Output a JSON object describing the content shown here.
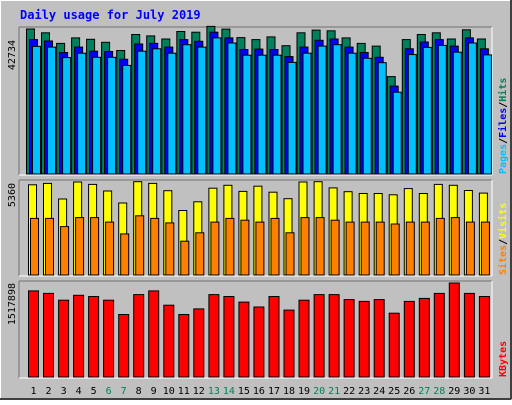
{
  "chart_data": {
    "title": "Daily usage for July 2019",
    "days": [
      "1",
      "2",
      "3",
      "4",
      "5",
      "6",
      "7",
      "8",
      "9",
      "10",
      "11",
      "12",
      "13",
      "14",
      "15",
      "16",
      "17",
      "18",
      "19",
      "20",
      "21",
      "22",
      "23",
      "24",
      "25",
      "26",
      "27",
      "28",
      "29",
      "30",
      "31"
    ],
    "weekend_days": [
      "6",
      "7",
      "13",
      "14",
      "20",
      "21",
      "27",
      "28"
    ],
    "colors": {
      "background": "#c0c0c0",
      "title": "#0000ff",
      "hits": "#00805c",
      "files": "#0000ff",
      "pages": "#00c0ff",
      "visits": "#ffff00",
      "sites": "#ff8000",
      "kbytes": "#ff0000",
      "weekend_label": "#00805c",
      "weekday_label": "#000000"
    },
    "panels": [
      {
        "type": "bar",
        "axis_max_label": "42734",
        "ylim": [
          0,
          42734
        ],
        "legend": [
          {
            "label": "Pages",
            "color": "#00c0ff"
          },
          {
            "label": "/",
            "color": "#000000"
          },
          {
            "label": "Files",
            "color": "#0000ff"
          },
          {
            "label": "/",
            "color": "#000000"
          },
          {
            "label": "Hits",
            "color": "#00805c"
          }
        ],
        "series": [
          {
            "name": "Hits",
            "values": [
              42734,
              41600,
              38500,
              40100,
              39700,
              38800,
              36400,
              41100,
              40700,
              39800,
              42000,
              41800,
              43500,
              42700,
              40200,
              39600,
              40400,
              37800,
              41600,
              42400,
              42200,
              40100,
              38500,
              37700,
              28700,
              39600,
              41100,
              41600,
              39800,
              42500,
              39800
            ]
          },
          {
            "name": "Files",
            "values": [
              39600,
              39200,
              35800,
              37400,
              36200,
              36100,
              33800,
              38300,
              38500,
              37400,
              39600,
              39100,
              41800,
              40100,
              36700,
              36800,
              36700,
              34600,
              37400,
              39400,
              39800,
              37400,
              35800,
              34400,
              25900,
              36900,
              38900,
              39600,
              37700,
              40100,
              36900
            ]
          },
          {
            "name": "Pages",
            "values": [
              37600,
              37400,
              34300,
              35600,
              34400,
              34400,
              32000,
              36200,
              36900,
              35600,
              38100,
              37400,
              40100,
              38600,
              35000,
              35000,
              35000,
              32900,
              35600,
              37700,
              38100,
              35600,
              34100,
              32800,
              24100,
              35200,
              37300,
              37900,
              35900,
              38600,
              35100
            ]
          }
        ]
      },
      {
        "type": "bar",
        "axis_max_label": "5360",
        "ylim": [
          0,
          5360
        ],
        "legend": [
          {
            "label": "Sites",
            "color": "#ff8000"
          },
          {
            "label": "/",
            "color": "#000000"
          },
          {
            "label": "Visits",
            "color": "#ffff00"
          }
        ],
        "series": [
          {
            "name": "Visits",
            "values": [
              5200,
              5280,
              4380,
              5360,
              5220,
              4840,
              4150,
              5380,
              5280,
              4860,
              3720,
              4220,
              5000,
              5170,
              4820,
              5120,
              4770,
              4400,
              5360,
              5380,
              5020,
              4800,
              4700,
              4700,
              4620,
              4980,
              4700,
              5220,
              5170,
              4870,
              4720
            ]
          },
          {
            "name": "Sites",
            "values": [
              3260,
              3260,
              2790,
              3310,
              3310,
              3050,
              2370,
              3410,
              3260,
              3000,
              1950,
              2430,
              3050,
              3260,
              3160,
              3050,
              3260,
              2430,
              3310,
              3310,
              3160,
              3050,
              3050,
              3050,
              2940,
              3050,
              3050,
              3260,
              3310,
              3050,
              3050
            ]
          }
        ]
      },
      {
        "type": "bar",
        "axis_max_label": "1517898",
        "ylim": [
          0,
          1517898
        ],
        "legend": [
          {
            "label": "KBytes",
            "color": "#ff0000"
          }
        ],
        "series": [
          {
            "name": "KBytes",
            "values": [
              1390000,
              1350000,
              1240000,
              1320000,
              1300000,
              1240000,
              1010000,
              1330000,
              1390000,
              1160000,
              1010000,
              1100000,
              1330000,
              1300000,
              1210000,
              1130000,
              1300000,
              1080000,
              1240000,
              1330000,
              1330000,
              1250000,
              1220000,
              1250000,
              1030000,
              1220000,
              1270000,
              1350000,
              1517898,
              1350000,
              1300000
            ]
          }
        ]
      }
    ]
  }
}
